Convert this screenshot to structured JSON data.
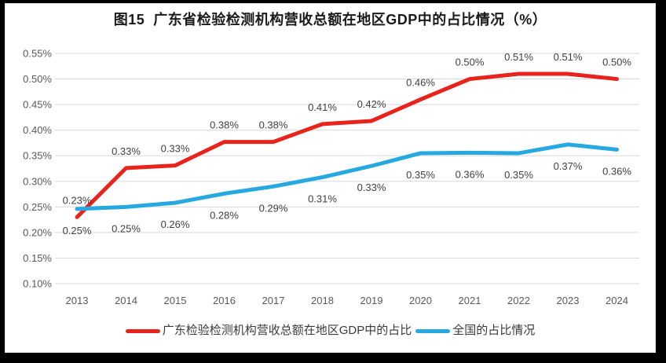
{
  "title": "图15  广东省检验检测机构营收总额在地区GDP中的占比情况（%）",
  "chart_data": {
    "type": "line",
    "title": "图15  广东省检验检测机构营收总额在地区GDP中的占比情况（%）",
    "categories": [
      "2013",
      "2014",
      "2015",
      "2016",
      "2017",
      "2018",
      "2019",
      "2020",
      "2021",
      "2022",
      "2023",
      "2024"
    ],
    "series": [
      {
        "id": "guangdong",
        "name": "广东检验检测机构营收总额在地区GDP中的占比",
        "color": "#e8231c",
        "values": [
          0.23,
          0.33,
          0.33,
          0.38,
          0.38,
          0.41,
          0.42,
          0.46,
          0.5,
          0.51,
          0.51,
          0.5
        ],
        "labels": [
          "0.23%",
          "0.33%",
          "0.33%",
          "0.38%",
          "0.38%",
          "0.41%",
          "0.42%",
          "0.46%",
          "0.50%",
          "0.51%",
          "0.51%",
          "0.50%"
        ],
        "plot_values": [
          0.23,
          0.326,
          0.331,
          0.377,
          0.377,
          0.412,
          0.418,
          0.46,
          0.5,
          0.51,
          0.51,
          0.5
        ],
        "label_position": "above"
      },
      {
        "id": "national",
        "name": "全国的占比情况",
        "color": "#25a9e0",
        "values": [
          0.25,
          0.25,
          0.26,
          0.28,
          0.29,
          0.31,
          0.33,
          0.35,
          0.36,
          0.35,
          0.37,
          0.36
        ],
        "labels": [
          "0.25%",
          "0.25%",
          "0.26%",
          "0.28%",
          "0.29%",
          "0.31%",
          "0.33%",
          "0.35%",
          "0.36%",
          "0.35%",
          "0.37%",
          "0.36%"
        ],
        "plot_values": [
          0.246,
          0.25,
          0.258,
          0.276,
          0.29,
          0.308,
          0.33,
          0.355,
          0.356,
          0.355,
          0.372,
          0.362
        ],
        "label_position": "below"
      }
    ],
    "y_axis": {
      "min": 0.1,
      "max": 0.55,
      "step": 0.05,
      "tick_labels": [
        "0.10%",
        "0.15%",
        "0.20%",
        "0.25%",
        "0.30%",
        "0.35%",
        "0.40%",
        "0.45%",
        "0.50%",
        "0.55%"
      ]
    },
    "grid": true,
    "legend_position": "bottom",
    "colors": {
      "gridline": "#d9d9d9",
      "axis_text": "#595959",
      "data_label_text": "#3f3f3f",
      "background": "#ffffff",
      "frame": "#000000"
    }
  },
  "legend": {
    "items": [
      {
        "label": "广东检验检测机构营收总额在地区GDP中的占比",
        "color": "#e8231c"
      },
      {
        "label": "全国的占比情况",
        "color": "#25a9e0"
      }
    ]
  }
}
